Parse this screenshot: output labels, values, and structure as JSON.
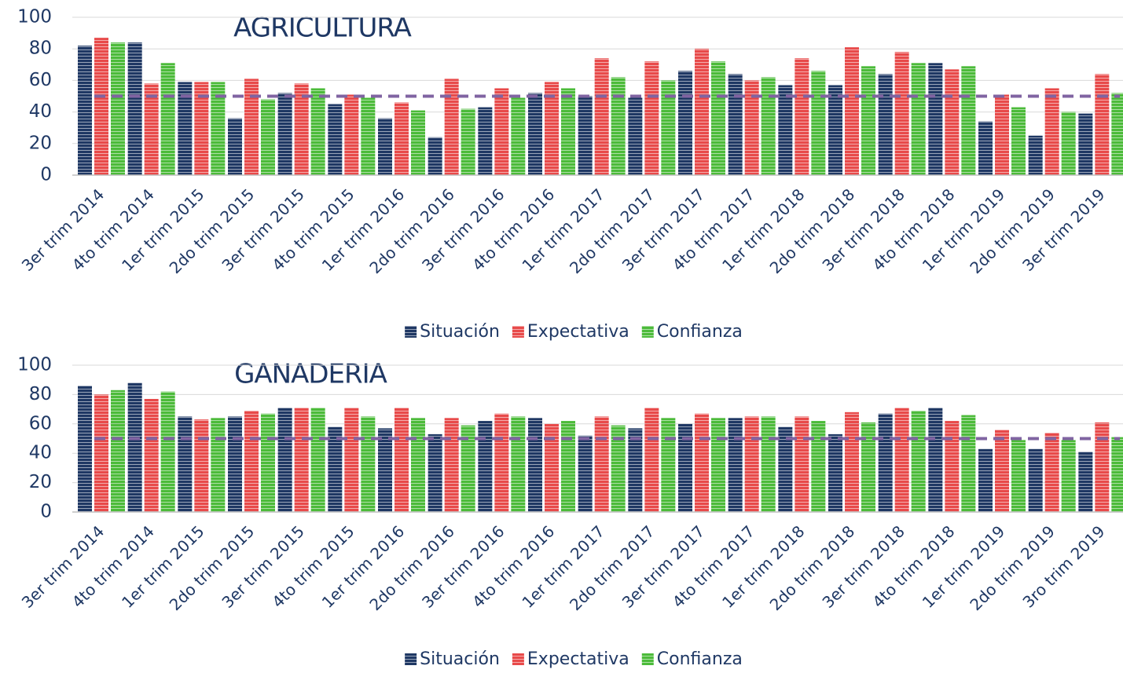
{
  "chart_data": [
    {
      "type": "bar",
      "title": "AGRICULTURA",
      "categories": [
        "3er trim 2014",
        "4to trim 2014",
        "1er trim 2015",
        "2do trim 2015",
        "3er trim 2015",
        "4to trim 2015",
        "1er trim 2016",
        "2do trim 2016",
        "3er trim 2016",
        "4to trim 2016",
        "1er trim 2017",
        "2do trim 2017",
        "3er trim 2017",
        "4to trim 2017",
        "1er trim 2018",
        "2do trim 2018",
        "3er trim 2018",
        "4to trim 2018",
        "1er trim 2019",
        "2do trim 2019",
        "3er trim 2019"
      ],
      "series": [
        {
          "name": "Situación",
          "color": "#1f3864",
          "values": [
            82,
            84,
            59,
            36,
            52,
            45,
            36,
            24,
            43,
            52,
            50,
            49,
            66,
            64,
            57,
            57,
            64,
            71,
            34,
            25,
            39
          ]
        },
        {
          "name": "Expectativa",
          "color": "#e84a4a",
          "values": [
            87,
            58,
            59,
            61,
            58,
            51,
            46,
            61,
            55,
            59,
            74,
            72,
            80,
            60,
            74,
            81,
            78,
            67,
            51,
            55,
            64
          ]
        },
        {
          "name": "Confianza",
          "color": "#4cbb3a",
          "values": [
            84,
            71,
            59,
            48,
            55,
            49,
            41,
            42,
            49,
            55,
            62,
            60,
            72,
            62,
            66,
            69,
            71,
            69,
            43,
            40,
            52
          ]
        }
      ],
      "ylim": [
        0,
        100
      ],
      "yticks": [
        0,
        20,
        40,
        60,
        80,
        100
      ],
      "reference_line": {
        "value": 50,
        "color": "#8064a2"
      },
      "legend": "bottom"
    },
    {
      "type": "bar",
      "title": "GANADERIA",
      "categories": [
        "3er trim 2014",
        "4to trim 2014",
        "1er trim 2015",
        "2do trim 2015",
        "3er trim 2015",
        "4to trim 2015",
        "1er trim 2016",
        "2do trim 2016",
        "3er trim 2016",
        "4to trim 2016",
        "1er trim 2017",
        "2do trim 2017",
        "3er trim 2017",
        "4to trim 2017",
        "1er trim 2018",
        "2do trim 2018",
        "3er trim 2018",
        "4to trim 2018",
        "1er trim 2019",
        "2do trim 2019",
        "3ro trim 2019"
      ],
      "series": [
        {
          "name": "Situación",
          "color": "#1f3864",
          "values": [
            86,
            88,
            65,
            65,
            71,
            58,
            57,
            53,
            62,
            64,
            52,
            57,
            60,
            64,
            58,
            53,
            67,
            71,
            43,
            43,
            41
          ]
        },
        {
          "name": "Expectativa",
          "color": "#e84a4a",
          "values": [
            80,
            77,
            63,
            69,
            71,
            71,
            71,
            64,
            67,
            60,
            65,
            71,
            67,
            65,
            65,
            68,
            71,
            62,
            56,
            54,
            61
          ]
        },
        {
          "name": "Confianza",
          "color": "#4cbb3a",
          "values": [
            83,
            82,
            64,
            67,
            71,
            65,
            64,
            59,
            65,
            62,
            59,
            64,
            64,
            65,
            62,
            61,
            69,
            66,
            49,
            49,
            51
          ]
        }
      ],
      "ylim": [
        0,
        100
      ],
      "yticks": [
        0,
        20,
        40,
        60,
        80,
        100
      ],
      "reference_line": {
        "value": 50,
        "color": "#8064a2"
      },
      "legend": "bottom"
    }
  ]
}
